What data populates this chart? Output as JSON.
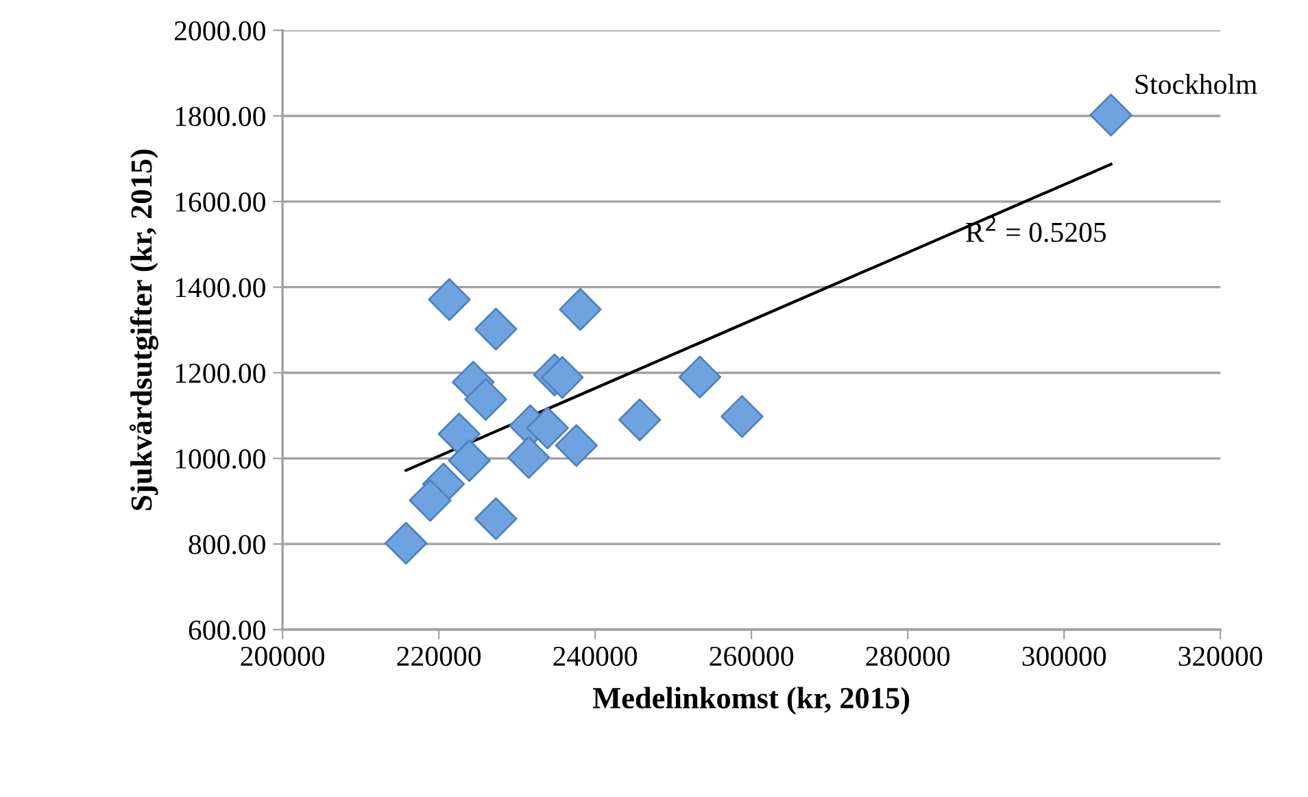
{
  "chart_data": {
    "type": "scatter",
    "xlabel": "Medelinkomst (kr, 2015)",
    "ylabel": "Sjukvårdsutgifter (kr, 2015)",
    "series": [
      {
        "color": "#6fa3e0",
        "x": [
          221350,
          227300,
          238100,
          224400,
          226000,
          234800,
          235800,
          253400,
          245700,
          258800,
          231700,
          233900,
          222600,
          223900,
          231500,
          237600,
          220600,
          218900,
          227300,
          215800,
          306000
        ],
        "values": [
          1371,
          1302,
          1348,
          1178,
          1138,
          1195,
          1189,
          1190,
          1090,
          1098,
          1076,
          1071,
          1057,
          995,
          1002,
          1030,
          940,
          902,
          859,
          802,
          1802
        ]
      },
      {
        "type": "line",
        "marker": "none",
        "color": "#000000",
        "x": [
          215800,
          306000
        ],
        "values": [
          972,
          1687
        ]
      }
    ],
    "annotations": [
      {
        "text": "Stockholm",
        "x": 306000,
        "y": 1802
      },
      {
        "text": "R$^{2}$ = 0.5205",
        "x": 306000,
        "y": 1687
      }
    ],
    "xlim": [
      200000,
      320000
    ],
    "xticks": [
      200000,
      220000,
      240000,
      260000,
      280000,
      300000,
      320000
    ],
    "ylim": [
      600,
      2000
    ],
    "yticks": [
      {
        "value": 600,
        "label": "600.00"
      },
      {
        "value": 800,
        "label": "800.00"
      },
      {
        "value": 1000,
        "label": "1000.00"
      },
      {
        "value": 1200,
        "label": "1200.00"
      },
      {
        "value": 1400,
        "label": "1400.00"
      },
      {
        "value": 1600,
        "label": "1600.00"
      },
      {
        "value": 1800,
        "label": "1800.00"
      },
      {
        "value": 2000,
        "label": "2000.00"
      }
    ],
    "grid": "y",
    "marker": "diamond",
    "legend": false
  }
}
